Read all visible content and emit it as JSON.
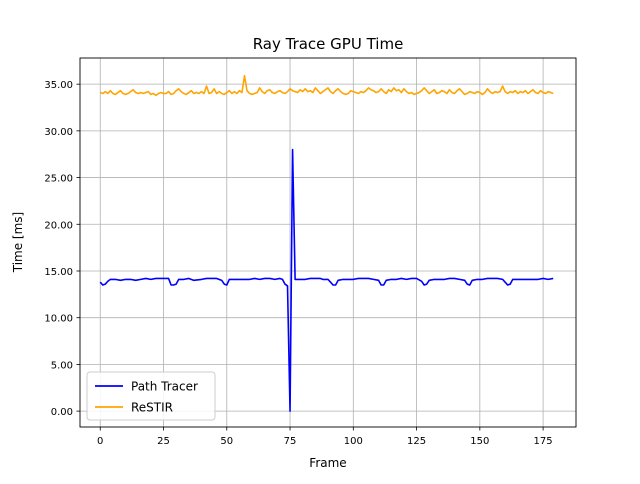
{
  "chart_data": {
    "type": "line",
    "title": "Ray Trace GPU Time",
    "xlabel": "Frame",
    "ylabel": "Time [ms]",
    "xlim": [
      -8,
      188
    ],
    "ylim": [
      -1.7,
      37.8
    ],
    "grid": true,
    "legend_position": "lower left",
    "x_ticks": [
      0,
      25,
      50,
      75,
      100,
      125,
      150,
      175
    ],
    "x_tick_labels": [
      "0",
      "25",
      "50",
      "75",
      "100",
      "125",
      "150",
      "175"
    ],
    "y_ticks": [
      0,
      5,
      10,
      15,
      20,
      25,
      30,
      35
    ],
    "y_tick_labels": [
      "0.00",
      "5.00",
      "10.00",
      "15.00",
      "20.00",
      "25.00",
      "30.00",
      "35.00"
    ],
    "series": [
      {
        "name": "Path Tracer",
        "color": "#0000ff",
        "points": [
          [
            0,
            13.8
          ],
          [
            1,
            13.5
          ],
          [
            2,
            13.6
          ],
          [
            3,
            13.9
          ],
          [
            4,
            14.1
          ],
          [
            5,
            14.1
          ],
          [
            6,
            14.1
          ],
          [
            8,
            14.0
          ],
          [
            10,
            14.1
          ],
          [
            12,
            14.1
          ],
          [
            14,
            14.0
          ],
          [
            16,
            14.1
          ],
          [
            18,
            14.2
          ],
          [
            20,
            14.1
          ],
          [
            22,
            14.2
          ],
          [
            24,
            14.2
          ],
          [
            26,
            14.2
          ],
          [
            27,
            14.2
          ],
          [
            28,
            13.5
          ],
          [
            29,
            13.5
          ],
          [
            30,
            13.6
          ],
          [
            31,
            14.1
          ],
          [
            33,
            14.1
          ],
          [
            35,
            14.2
          ],
          [
            37,
            14.0
          ],
          [
            40,
            14.1
          ],
          [
            42,
            14.2
          ],
          [
            44,
            14.2
          ],
          [
            46,
            14.2
          ],
          [
            48,
            14.0
          ],
          [
            49,
            13.6
          ],
          [
            50,
            13.5
          ],
          [
            51,
            14.1
          ],
          [
            53,
            14.1
          ],
          [
            56,
            14.1
          ],
          [
            59,
            14.1
          ],
          [
            61,
            14.2
          ],
          [
            63,
            14.1
          ],
          [
            65,
            14.2
          ],
          [
            67,
            14.2
          ],
          [
            69,
            14.1
          ],
          [
            71,
            14.2
          ],
          [
            72,
            14.1
          ],
          [
            73,
            13.6
          ],
          [
            74,
            13.4
          ],
          [
            75,
            0.0
          ],
          [
            76,
            28.0
          ],
          [
            77,
            14.1
          ],
          [
            79,
            14.1
          ],
          [
            81,
            14.1
          ],
          [
            83,
            14.2
          ],
          [
            85,
            14.2
          ],
          [
            87,
            14.2
          ],
          [
            88,
            14.1
          ],
          [
            90,
            14.1
          ],
          [
            91,
            13.8
          ],
          [
            92,
            13.5
          ],
          [
            93,
            13.5
          ],
          [
            94,
            14.0
          ],
          [
            96,
            14.1
          ],
          [
            98,
            14.1
          ],
          [
            100,
            14.1
          ],
          [
            102,
            14.2
          ],
          [
            104,
            14.2
          ],
          [
            106,
            14.2
          ],
          [
            108,
            14.1
          ],
          [
            110,
            14.0
          ],
          [
            111,
            13.5
          ],
          [
            112,
            13.5
          ],
          [
            113,
            14.0
          ],
          [
            115,
            14.1
          ],
          [
            117,
            14.1
          ],
          [
            119,
            14.2
          ],
          [
            121,
            14.1
          ],
          [
            123,
            14.2
          ],
          [
            125,
            14.2
          ],
          [
            127,
            13.9
          ],
          [
            128,
            13.5
          ],
          [
            129,
            13.6
          ],
          [
            130,
            14.0
          ],
          [
            132,
            14.1
          ],
          [
            134,
            14.1
          ],
          [
            136,
            14.1
          ],
          [
            138,
            14.2
          ],
          [
            140,
            14.2
          ],
          [
            142,
            14.1
          ],
          [
            144,
            14.0
          ],
          [
            145,
            13.6
          ],
          [
            146,
            13.5
          ],
          [
            147,
            14.0
          ],
          [
            149,
            14.1
          ],
          [
            151,
            14.1
          ],
          [
            153,
            14.2
          ],
          [
            155,
            14.2
          ],
          [
            157,
            14.2
          ],
          [
            159,
            14.1
          ],
          [
            160,
            13.8
          ],
          [
            161,
            13.5
          ],
          [
            162,
            13.6
          ],
          [
            163,
            14.1
          ],
          [
            165,
            14.1
          ],
          [
            167,
            14.1
          ],
          [
            169,
            14.1
          ],
          [
            171,
            14.1
          ],
          [
            173,
            14.1
          ],
          [
            175,
            14.2
          ],
          [
            177,
            14.1
          ],
          [
            179,
            14.2
          ]
        ]
      },
      {
        "name": "ReSTIR",
        "color": "#ffa500",
        "points": [
          [
            0,
            34.1
          ],
          [
            1,
            34.0
          ],
          [
            2,
            34.2
          ],
          [
            3,
            34.0
          ],
          [
            4,
            34.3
          ],
          [
            5,
            34.0
          ],
          [
            6,
            33.9
          ],
          [
            7,
            34.1
          ],
          [
            8,
            34.3
          ],
          [
            9,
            34.0
          ],
          [
            10,
            33.9
          ],
          [
            11,
            34.0
          ],
          [
            12,
            34.2
          ],
          [
            13,
            34.4
          ],
          [
            14,
            34.1
          ],
          [
            15,
            34.0
          ],
          [
            16,
            34.1
          ],
          [
            17,
            34.0
          ],
          [
            18,
            34.1
          ],
          [
            19,
            34.2
          ],
          [
            20,
            33.9
          ],
          [
            21,
            34.0
          ],
          [
            22,
            33.8
          ],
          [
            23,
            34.0
          ],
          [
            24,
            34.1
          ],
          [
            25,
            34.0
          ],
          [
            26,
            34.0
          ],
          [
            27,
            34.2
          ],
          [
            28,
            33.9
          ],
          [
            29,
            34.0
          ],
          [
            30,
            34.3
          ],
          [
            31,
            34.5
          ],
          [
            32,
            34.2
          ],
          [
            33,
            34.0
          ],
          [
            34,
            33.9
          ],
          [
            35,
            34.1
          ],
          [
            36,
            34.3
          ],
          [
            37,
            34.0
          ],
          [
            38,
            34.1
          ],
          [
            39,
            34.0
          ],
          [
            40,
            34.2
          ],
          [
            41,
            34.0
          ],
          [
            42,
            34.8
          ],
          [
            43,
            34.0
          ],
          [
            44,
            34.1
          ],
          [
            45,
            34.5
          ],
          [
            46,
            34.0
          ],
          [
            47,
            34.2
          ],
          [
            48,
            34.0
          ],
          [
            49,
            33.9
          ],
          [
            50,
            34.1
          ],
          [
            51,
            34.3
          ],
          [
            52,
            34.0
          ],
          [
            53,
            34.2
          ],
          [
            54,
            34.0
          ],
          [
            55,
            34.3
          ],
          [
            56,
            34.1
          ],
          [
            57,
            35.9
          ],
          [
            58,
            34.3
          ],
          [
            59,
            34.0
          ],
          [
            60,
            33.9
          ],
          [
            61,
            34.0
          ],
          [
            62,
            34.1
          ],
          [
            63,
            34.6
          ],
          [
            64,
            34.2
          ],
          [
            65,
            34.0
          ],
          [
            66,
            34.3
          ],
          [
            67,
            34.4
          ],
          [
            68,
            34.1
          ],
          [
            69,
            34.0
          ],
          [
            70,
            34.2
          ],
          [
            71,
            34.3
          ],
          [
            72,
            34.1
          ],
          [
            73,
            34.0
          ],
          [
            74,
            34.2
          ],
          [
            75,
            34.5
          ],
          [
            76,
            34.3
          ],
          [
            77,
            34.2
          ],
          [
            78,
            34.1
          ],
          [
            79,
            34.4
          ],
          [
            80,
            34.2
          ],
          [
            81,
            34.5
          ],
          [
            82,
            34.2
          ],
          [
            83,
            34.3
          ],
          [
            84,
            34.1
          ],
          [
            85,
            34.6
          ],
          [
            86,
            34.3
          ],
          [
            87,
            34.0
          ],
          [
            88,
            34.2
          ],
          [
            89,
            34.4
          ],
          [
            90,
            34.6
          ],
          [
            91,
            34.2
          ],
          [
            92,
            34.0
          ],
          [
            93,
            34.3
          ],
          [
            94,
            34.5
          ],
          [
            95,
            34.2
          ],
          [
            96,
            34.0
          ],
          [
            97,
            33.9
          ],
          [
            98,
            34.0
          ],
          [
            99,
            34.3
          ],
          [
            100,
            34.2
          ],
          [
            101,
            34.1
          ],
          [
            102,
            34.0
          ],
          [
            103,
            34.2
          ],
          [
            104,
            34.1
          ],
          [
            105,
            34.3
          ],
          [
            106,
            34.6
          ],
          [
            107,
            34.4
          ],
          [
            108,
            34.3
          ],
          [
            109,
            34.1
          ],
          [
            110,
            34.2
          ],
          [
            111,
            34.5
          ],
          [
            112,
            34.2
          ],
          [
            113,
            34.0
          ],
          [
            114,
            34.4
          ],
          [
            115,
            34.2
          ],
          [
            116,
            34.6
          ],
          [
            117,
            34.3
          ],
          [
            118,
            34.4
          ],
          [
            119,
            34.1
          ],
          [
            120,
            34.5
          ],
          [
            121,
            34.2
          ],
          [
            122,
            34.0
          ],
          [
            123,
            34.1
          ],
          [
            124,
            33.9
          ],
          [
            125,
            34.0
          ],
          [
            126,
            34.1
          ],
          [
            127,
            34.3
          ],
          [
            128,
            34.6
          ],
          [
            129,
            34.3
          ],
          [
            130,
            34.0
          ],
          [
            131,
            34.2
          ],
          [
            132,
            34.4
          ],
          [
            133,
            34.0
          ],
          [
            134,
            34.1
          ],
          [
            135,
            34.3
          ],
          [
            136,
            34.2
          ],
          [
            137,
            34.0
          ],
          [
            138,
            34.4
          ],
          [
            139,
            34.1
          ],
          [
            140,
            34.0
          ],
          [
            141,
            34.3
          ],
          [
            142,
            34.5
          ],
          [
            143,
            34.2
          ],
          [
            144,
            33.9
          ],
          [
            145,
            34.0
          ],
          [
            146,
            34.2
          ],
          [
            147,
            34.1
          ],
          [
            148,
            34.0
          ],
          [
            149,
            34.2
          ],
          [
            150,
            34.1
          ],
          [
            151,
            33.9
          ],
          [
            152,
            34.1
          ],
          [
            153,
            34.5
          ],
          [
            154,
            34.2
          ],
          [
            155,
            34.0
          ],
          [
            156,
            34.2
          ],
          [
            157,
            34.1
          ],
          [
            158,
            34.2
          ],
          [
            159,
            34.8
          ],
          [
            160,
            34.2
          ],
          [
            161,
            34.0
          ],
          [
            162,
            34.2
          ],
          [
            163,
            34.1
          ],
          [
            164,
            34.3
          ],
          [
            165,
            34.0
          ],
          [
            166,
            34.2
          ],
          [
            167,
            34.1
          ],
          [
            168,
            34.3
          ],
          [
            169,
            34.0
          ],
          [
            170,
            34.2
          ],
          [
            171,
            34.4
          ],
          [
            172,
            34.1
          ],
          [
            173,
            34.0
          ],
          [
            174,
            34.3
          ],
          [
            175,
            34.1
          ],
          [
            176,
            34.0
          ],
          [
            177,
            34.2
          ],
          [
            178,
            34.1
          ],
          [
            179,
            34.0
          ]
        ]
      }
    ]
  }
}
